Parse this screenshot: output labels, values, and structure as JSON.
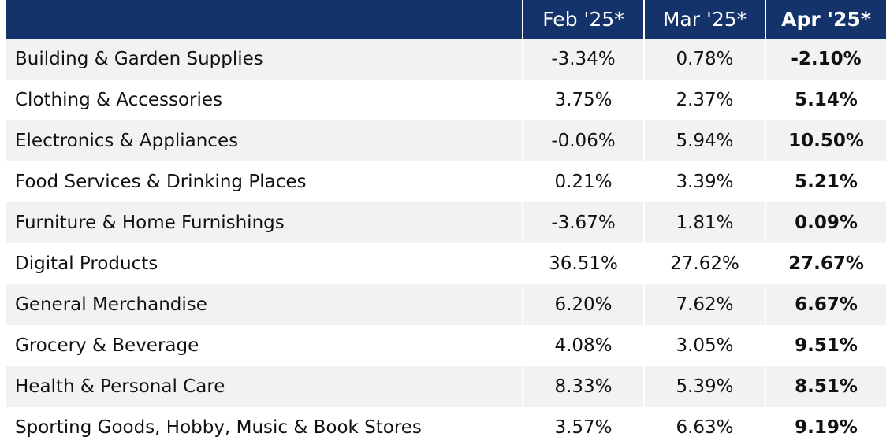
{
  "table": {
    "headers": [
      "",
      "Feb '25*",
      "Mar '25*",
      "Apr '25*"
    ],
    "rows": [
      {
        "category": "Building & Garden Supplies",
        "feb": "-3.34%",
        "mar": "0.78%",
        "apr": "-2.10%"
      },
      {
        "category": "Clothing & Accessories",
        "feb": "3.75%",
        "mar": "2.37%",
        "apr": "5.14%"
      },
      {
        "category": "Electronics & Appliances",
        "feb": "-0.06%",
        "mar": "5.94%",
        "apr": "10.50%"
      },
      {
        "category": "Food Services & Drinking Places",
        "feb": "0.21%",
        "mar": "3.39%",
        "apr": "5.21%"
      },
      {
        "category": "Furniture & Home Furnishings",
        "feb": "-3.67%",
        "mar": "1.81%",
        "apr": "0.09%"
      },
      {
        "category": "Digital Products",
        "feb": "36.51%",
        "mar": "27.62%",
        "apr": "27.67%"
      },
      {
        "category": "General Merchandise",
        "feb": "6.20%",
        "mar": "7.62%",
        "apr": "6.67%"
      },
      {
        "category": "Grocery & Beverage",
        "feb": "4.08%",
        "mar": "3.05%",
        "apr": "9.51%"
      },
      {
        "category": "Health & Personal Care",
        "feb": "8.33%",
        "mar": "5.39%",
        "apr": "8.51%"
      },
      {
        "category": "Sporting Goods, Hobby, Music & Book Stores",
        "feb": "3.57%",
        "mar": "6.63%",
        "apr": "9.19%"
      }
    ]
  },
  "colors": {
    "header_background": "#15336b",
    "header_text": "#ffffff",
    "row_stripe": "#f2f2f2"
  }
}
